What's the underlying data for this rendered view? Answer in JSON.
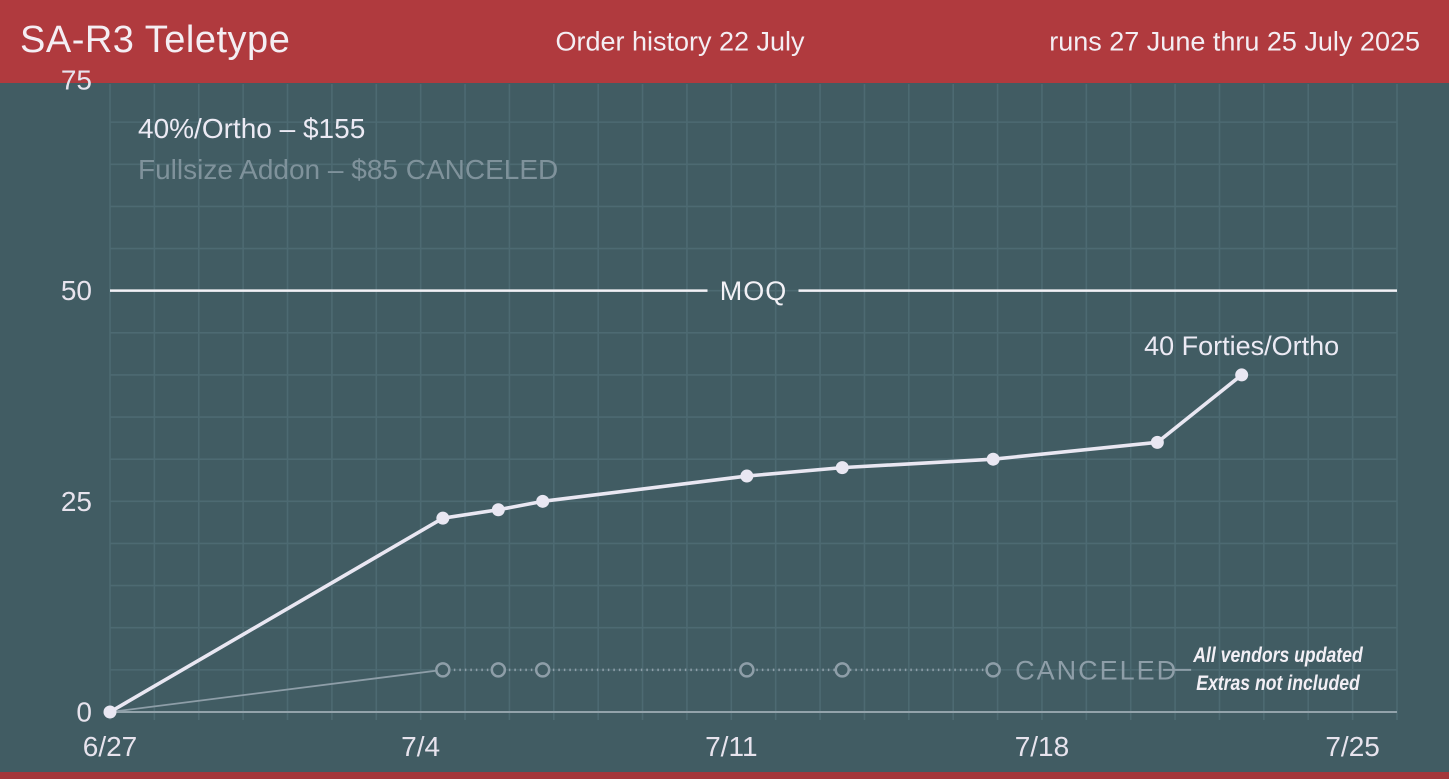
{
  "header": {
    "title": "SA-R3 Teletype",
    "subtitle": "Order history 22 July",
    "range_note": "runs 27 June thru 25 July 2025"
  },
  "legend": {
    "primary": "40%/Ortho – $155",
    "secondary": "Fullsize Addon – $85 CANCELED"
  },
  "side_note": {
    "line1": "All vendors updated",
    "line2": "Extras not included"
  },
  "colors": {
    "background": "#415c63",
    "header_red": "#b03a3e",
    "bottom_strip_red": "#a4363a",
    "grid": "#4d6a72",
    "axis_line": "#93a3ab",
    "tick_text": "#e7e3ed",
    "moq_line": "#f2f1f6",
    "series_main": "#e9e7f2",
    "series_canceled": "#8e9ea8",
    "end_label_text": "#eceaf4"
  },
  "chart_data": {
    "type": "line",
    "title": "Order history 22 July",
    "xlabel": "",
    "ylabel": "",
    "ylim": [
      0,
      75
    ],
    "y_ticks": [
      0,
      25,
      50,
      75
    ],
    "x_axis_days_span": 29,
    "x_ticks": [
      {
        "day": 0,
        "label": "6/27"
      },
      {
        "day": 7,
        "label": "7/4"
      },
      {
        "day": 14,
        "label": "7/11"
      },
      {
        "day": 21,
        "label": "7/18"
      },
      {
        "day": 28,
        "label": "7/25"
      }
    ],
    "grid": {
      "on": true,
      "x_step_days": 1,
      "y_step": 5
    },
    "reference_line": {
      "value": 50,
      "label": "MOQ"
    },
    "series": [
      {
        "name": "40%/Ortho – $155",
        "line_style": "solid",
        "marker": "filled",
        "end_label": "40 Forties/Ortho",
        "points": [
          {
            "day": 0,
            "value": 0
          },
          {
            "day": 7.5,
            "value": 23
          },
          {
            "day": 8.75,
            "value": 24
          },
          {
            "day": 9.75,
            "value": 25
          },
          {
            "day": 14.35,
            "value": 28
          },
          {
            "day": 16.5,
            "value": 29
          },
          {
            "day": 19.9,
            "value": 30
          },
          {
            "day": 23.6,
            "value": 32
          },
          {
            "day": 25.5,
            "value": 40
          }
        ]
      },
      {
        "name": "Fullsize Addon – $85",
        "line_style": "dotted",
        "marker": "open",
        "end_label": "CANCELED",
        "status": "CANCELED",
        "points": [
          {
            "day": 0,
            "value": 0
          },
          {
            "day": 7.5,
            "value": 5
          },
          {
            "day": 8.75,
            "value": 5
          },
          {
            "day": 9.75,
            "value": 5
          },
          {
            "day": 14.35,
            "value": 5
          },
          {
            "day": 16.5,
            "value": 5
          },
          {
            "day": 19.9,
            "value": 5
          }
        ]
      }
    ]
  }
}
